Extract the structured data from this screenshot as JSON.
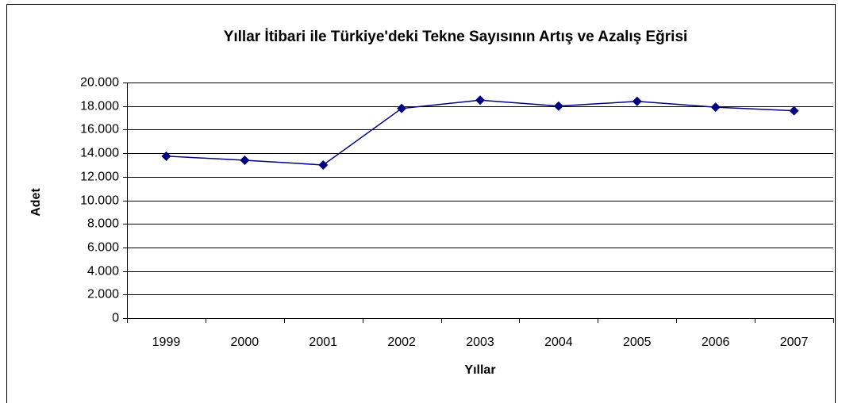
{
  "chart_data": {
    "type": "line",
    "title": "Yıllar İtibari ile Türkiye'deki Tekne Sayısının Artış ve Azalış Eğrisi",
    "x_label": "Yıllar",
    "y_label": "Adet",
    "categories": [
      "1999",
      "2000",
      "2001",
      "2002",
      "2003",
      "2004",
      "2005",
      "2006",
      "2007"
    ],
    "series": [
      {
        "name": "Adet",
        "color": "#000080",
        "values": [
          13750,
          13400,
          13000,
          17800,
          18500,
          18000,
          18400,
          17900,
          17600
        ]
      }
    ],
    "ylim": [
      0,
      20000
    ],
    "yticks": [
      0,
      {
        "value": 2000,
        "label": "2.000"
      },
      {
        "value": 4000,
        "label": "4.000"
      },
      {
        "value": 6000,
        "label": "6.000"
      },
      {
        "value": 8000,
        "label": "8.000"
      },
      {
        "value": 10000,
        "label": "10.000"
      },
      {
        "value": 12000,
        "label": "12.000"
      },
      {
        "value": 14000,
        "label": "14.000"
      },
      {
        "value": 16000,
        "label": "16.000"
      },
      {
        "value": 18000,
        "label": "18.000"
      },
      {
        "value": 20000,
        "label": "20.000"
      }
    ],
    "grid": true
  }
}
